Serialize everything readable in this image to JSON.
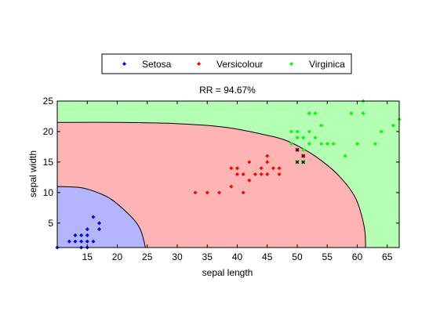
{
  "chart_data": {
    "type": "scatter",
    "title": "RR = 94.67%",
    "xlabel": "sepal length",
    "ylabel": "sepal width",
    "xlim": [
      10,
      67
    ],
    "ylim": [
      1,
      25
    ],
    "xticks": [
      15,
      20,
      25,
      30,
      35,
      40,
      45,
      50,
      55,
      60,
      65
    ],
    "yticks": [
      5,
      10,
      15,
      20,
      25
    ],
    "grid": false,
    "legend_position": "top",
    "regions": [
      {
        "name": "Setosa",
        "color": "#b4b4ff",
        "boundary": [
          [
            10,
            11
          ],
          [
            14,
            10.8
          ],
          [
            17,
            9.9
          ],
          [
            19,
            8.9
          ],
          [
            21,
            7.3
          ],
          [
            23,
            5.3
          ],
          [
            24,
            3.6
          ],
          [
            24.7,
            1
          ]
        ]
      },
      {
        "name": "Versicolour",
        "color": "#ffb4b4",
        "boundary": [
          [
            10,
            21.5
          ],
          [
            20,
            21.5
          ],
          [
            30,
            21.3
          ],
          [
            38,
            20.7
          ],
          [
            44,
            19.6
          ],
          [
            48,
            18.6
          ],
          [
            52,
            16.6
          ],
          [
            55,
            14.5
          ],
          [
            57,
            12.7
          ],
          [
            59,
            10.3
          ],
          [
            60,
            8.5
          ],
          [
            60.8,
            6
          ],
          [
            61.3,
            3.5
          ],
          [
            61.4,
            1
          ]
        ]
      },
      {
        "name": "Virginica",
        "color": "#b4ffb4"
      }
    ],
    "series": [
      {
        "name": "Setosa",
        "color": "#0000ff",
        "x": [
          10,
          12,
          13,
          13,
          14,
          14,
          14,
          15,
          15,
          15,
          15,
          16,
          16,
          17,
          17
        ],
        "y": [
          1,
          2,
          2,
          3,
          1,
          2,
          3,
          1,
          2,
          3,
          4,
          2,
          6,
          4,
          5
        ]
      },
      {
        "name": "Versicolour",
        "color": "#ff0000",
        "x": [
          33,
          35,
          37,
          39,
          39,
          40,
          40,
          41,
          41,
          42,
          42,
          43,
          44,
          44,
          45,
          45,
          45,
          46,
          47,
          47,
          50,
          51
        ],
        "y": [
          10,
          10,
          10,
          11,
          14,
          13,
          14,
          10,
          13,
          12,
          15,
          13,
          13,
          14,
          13,
          15,
          16,
          14,
          13,
          14,
          17,
          16
        ]
      },
      {
        "name": "Virginica",
        "color": "#00ff00",
        "x": [
          49,
          49,
          50,
          50,
          50,
          51,
          51,
          51,
          52,
          52,
          52,
          53,
          53,
          54,
          54,
          55,
          56,
          58,
          59,
          60,
          61,
          61,
          63,
          64,
          66,
          67
        ],
        "y": [
          20,
          18,
          19,
          20,
          15,
          17,
          19,
          15,
          20,
          23,
          18,
          23,
          19,
          21,
          18,
          18,
          18,
          16,
          23,
          18,
          23,
          25,
          18,
          20,
          21,
          22
        ]
      }
    ],
    "misclassified": {
      "color": "#000000",
      "x": [
        50,
        50,
        51,
        51
      ],
      "y": [
        17,
        15,
        16,
        15
      ]
    },
    "legend": [
      {
        "name": "Setosa",
        "color": "#0000ff"
      },
      {
        "name": "Versicolour",
        "color": "#ff0000"
      },
      {
        "name": "Virginica",
        "color": "#00ff00"
      }
    ]
  }
}
